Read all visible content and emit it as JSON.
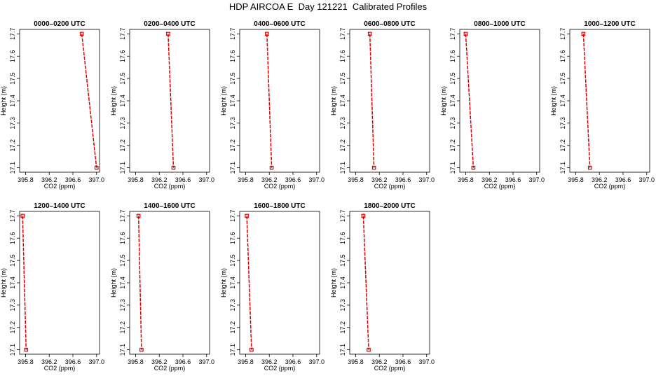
{
  "figure": {
    "title": "HDP AIRCOA E  Day 121221  Calibrated Profiles"
  },
  "chart_data": [
    {
      "type": "line",
      "title": "0000–0200 UTC",
      "xlabel": "CO2 (ppm)",
      "ylabel": "Height (m)",
      "xlim": [
        395.7,
        397.05
      ],
      "ylim": [
        17.08,
        17.72
      ],
      "xticks": [
        "395.8",
        "396.2",
        "396.6",
        "397.0"
      ],
      "yticks": [
        "17.1",
        "17.2",
        "17.3",
        "17.4",
        "17.5",
        "17.6",
        "17.7"
      ],
      "series": [
        {
          "color": "#dd0000",
          "x": [
            396.75,
            397.0
          ],
          "y": [
            17.7,
            17.1
          ]
        }
      ]
    },
    {
      "type": "line",
      "title": "0200–0400 UTC",
      "xlabel": "CO2 (ppm)",
      "ylabel": "Height (m)",
      "xlim": [
        395.7,
        397.05
      ],
      "ylim": [
        17.08,
        17.72
      ],
      "xticks": [
        "395.8",
        "396.2",
        "396.6",
        "397.0"
      ],
      "yticks": [
        "17.1",
        "17.2",
        "17.3",
        "17.4",
        "17.5",
        "17.6",
        "17.7"
      ],
      "series": [
        {
          "color": "#dd0000",
          "x": [
            396.35,
            396.44
          ],
          "y": [
            17.7,
            17.1
          ]
        }
      ]
    },
    {
      "type": "line",
      "title": "0400–0600 UTC",
      "xlabel": "CO2 (ppm)",
      "ylabel": "Height (m)",
      "xlim": [
        395.7,
        397.05
      ],
      "ylim": [
        17.08,
        17.72
      ],
      "xticks": [
        "395.8",
        "396.2",
        "396.6",
        "397.0"
      ],
      "yticks": [
        "17.1",
        "17.2",
        "17.3",
        "17.4",
        "17.5",
        "17.6",
        "17.7"
      ],
      "series": [
        {
          "color": "#dd0000",
          "x": [
            396.16,
            396.24
          ],
          "y": [
            17.7,
            17.1
          ]
        }
      ]
    },
    {
      "type": "line",
      "title": "0600–0800 UTC",
      "xlabel": "CO2 (ppm)",
      "ylabel": "Height (m)",
      "xlim": [
        395.7,
        397.05
      ],
      "ylim": [
        17.08,
        17.72
      ],
      "xticks": [
        "395.8",
        "396.2",
        "396.6",
        "397.0"
      ],
      "yticks": [
        "17.1",
        "17.2",
        "17.3",
        "17.4",
        "17.5",
        "17.6",
        "17.7"
      ],
      "series": [
        {
          "color": "#dd0000",
          "x": [
            396.04,
            396.11
          ],
          "y": [
            17.7,
            17.1
          ]
        }
      ]
    },
    {
      "type": "line",
      "title": "0800–1000 UTC",
      "xlabel": "CO2 (ppm)",
      "ylabel": "Height (m)",
      "xlim": [
        395.7,
        397.05
      ],
      "ylim": [
        17.08,
        17.72
      ],
      "xticks": [
        "395.8",
        "396.2",
        "396.6",
        "397.0"
      ],
      "yticks": [
        "17.1",
        "17.2",
        "17.3",
        "17.4",
        "17.5",
        "17.6",
        "17.7"
      ],
      "series": [
        {
          "color": "#dd0000",
          "x": [
            395.8,
            395.93
          ],
          "y": [
            17.7,
            17.1
          ]
        }
      ]
    },
    {
      "type": "line",
      "title": "1000–1200 UTC",
      "xlabel": "CO2 (ppm)",
      "ylabel": "Height (m)",
      "xlim": [
        395.7,
        397.05
      ],
      "ylim": [
        17.08,
        17.72
      ],
      "xticks": [
        "395.8",
        "396.2",
        "396.6",
        "397.0"
      ],
      "yticks": [
        "17.1",
        "17.2",
        "17.3",
        "17.4",
        "17.5",
        "17.6",
        "17.7"
      ],
      "series": [
        {
          "color": "#dd0000",
          "x": [
            395.93,
            396.04
          ],
          "y": [
            17.7,
            17.1
          ]
        }
      ]
    },
    {
      "type": "line",
      "title": "1200–1400 UTC",
      "xlabel": "CO2 (ppm)",
      "ylabel": "Height (m)",
      "xlim": [
        395.7,
        397.05
      ],
      "ylim": [
        17.08,
        17.72
      ],
      "xticks": [
        "395.8",
        "396.2",
        "396.6",
        "397.0"
      ],
      "yticks": [
        "17.1",
        "17.2",
        "17.3",
        "17.4",
        "17.5",
        "17.6",
        "17.7"
      ],
      "series": [
        {
          "color": "#dd0000",
          "x": [
            395.75,
            395.81
          ],
          "y": [
            17.7,
            17.1
          ]
        }
      ]
    },
    {
      "type": "line",
      "title": "1400–1600 UTC",
      "xlabel": "CO2 (ppm)",
      "ylabel": "Height (m)",
      "xlim": [
        395.7,
        397.05
      ],
      "ylim": [
        17.08,
        17.72
      ],
      "xticks": [
        "395.8",
        "396.2",
        "396.6",
        "397.0"
      ],
      "yticks": [
        "17.1",
        "17.2",
        "17.3",
        "17.4",
        "17.5",
        "17.6",
        "17.7"
      ],
      "series": [
        {
          "color": "#dd0000",
          "x": [
            395.85,
            395.9
          ],
          "y": [
            17.7,
            17.1
          ]
        }
      ]
    },
    {
      "type": "line",
      "title": "1600–1800 UTC",
      "xlabel": "CO2 (ppm)",
      "ylabel": "Height (m)",
      "xlim": [
        395.7,
        397.05
      ],
      "ylim": [
        17.08,
        17.72
      ],
      "xticks": [
        "395.8",
        "396.2",
        "396.6",
        "397.0"
      ],
      "yticks": [
        "17.1",
        "17.2",
        "17.3",
        "17.4",
        "17.5",
        "17.6",
        "17.7"
      ],
      "series": [
        {
          "color": "#dd0000",
          "x": [
            395.82,
            395.9
          ],
          "y": [
            17.7,
            17.1
          ]
        }
      ]
    },
    {
      "type": "line",
      "title": "1800–2000 UTC",
      "xlabel": "CO2 (ppm)",
      "ylabel": "Height (m)",
      "xlim": [
        395.7,
        397.05
      ],
      "ylim": [
        17.08,
        17.72
      ],
      "xticks": [
        "395.8",
        "396.2",
        "396.6",
        "397.0"
      ],
      "yticks": [
        "17.1",
        "17.2",
        "17.3",
        "17.4",
        "17.5",
        "17.6",
        "17.7"
      ],
      "series": [
        {
          "color": "#dd0000",
          "x": [
            395.93,
            396.02
          ],
          "y": [
            17.7,
            17.1
          ]
        }
      ]
    }
  ]
}
